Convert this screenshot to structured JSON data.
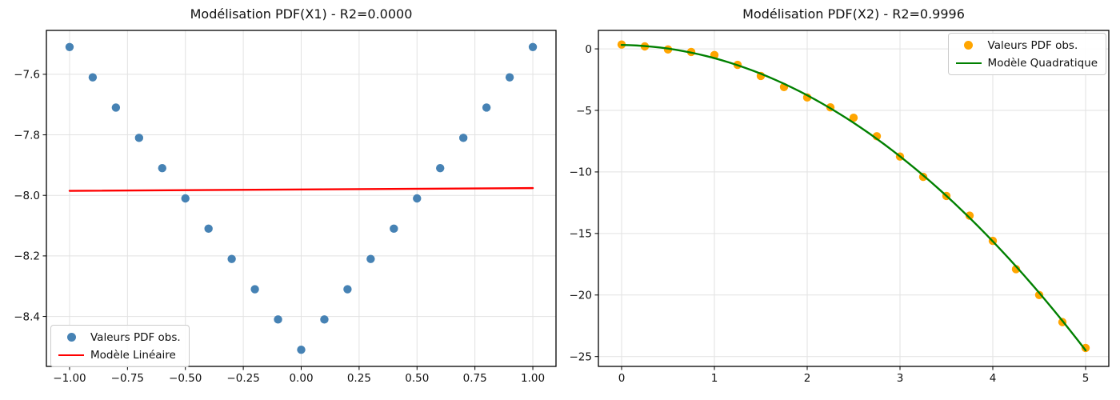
{
  "figure": {
    "background_color": "#ffffff",
    "text_color": "#111111",
    "grid_color": "#e2e2e2",
    "spine_color": "#000000"
  },
  "chart_data": [
    {
      "type": "scatter",
      "title": "Modélisation PDF(X1) - R2=0.0000",
      "r_squared": "0.0000",
      "xlabel": "",
      "ylabel": "",
      "axes": {
        "xlim": [
          -1.1,
          1.1
        ],
        "ylim": [
          -8.565,
          -7.455
        ],
        "grid": true,
        "xtick_values": [
          -1.0,
          -0.75,
          -0.5,
          -0.25,
          0.0,
          0.25,
          0.5,
          0.75,
          1.0
        ],
        "xtick_labels": [
          "−1.00",
          "−0.75",
          "−0.50",
          "−0.25",
          "0.00",
          "0.25",
          "0.50",
          "0.75",
          "1.00"
        ],
        "ytick_values": [
          -7.6,
          -7.8,
          -8.0,
          -8.2,
          -8.4
        ],
        "ytick_labels": [
          "−7.6",
          "−7.8",
          "−8.0",
          "−8.2",
          "−8.4"
        ]
      },
      "legend_position": "lower left",
      "series": [
        {
          "name": "Valeurs PDF obs.",
          "type": "scatter",
          "color": "#4682b4",
          "marker": "circle",
          "x": [
            -1.0,
            -0.9,
            -0.8,
            -0.7,
            -0.6,
            -0.5,
            -0.4,
            -0.3,
            -0.2,
            -0.1,
            0.0,
            0.1,
            0.2,
            0.3,
            0.4,
            0.5,
            0.6,
            0.7,
            0.8,
            0.9,
            1.0
          ],
          "y": [
            -7.51,
            -7.61,
            -7.71,
            -7.81,
            -7.91,
            -8.01,
            -8.11,
            -8.21,
            -8.31,
            -8.41,
            -8.51,
            -8.41,
            -8.31,
            -8.21,
            -8.11,
            -8.01,
            -7.91,
            -7.81,
            -7.71,
            -7.61,
            -7.51
          ]
        },
        {
          "name": "Modèle Linéaire",
          "type": "line",
          "color": "#ff0000",
          "x": [
            -1.0,
            1.0
          ],
          "y": [
            -7.985,
            -7.976
          ]
        }
      ]
    },
    {
      "type": "scatter",
      "title": "Modélisation PDF(X2) - R2=0.9996",
      "r_squared": "0.9996",
      "xlabel": "",
      "ylabel": "",
      "axes": {
        "xlim": [
          -0.25,
          5.25
        ],
        "ylim": [
          -25.8,
          1.5
        ],
        "grid": true,
        "xtick_values": [
          0,
          1,
          2,
          3,
          4,
          5
        ],
        "xtick_labels": [
          "0",
          "1",
          "2",
          "3",
          "4",
          "5"
        ],
        "ytick_values": [
          0,
          -5,
          -10,
          -15,
          -20,
          -25
        ],
        "ytick_labels": [
          "0",
          "−5",
          "−10",
          "−15",
          "−20",
          "−25"
        ]
      },
      "legend_position": "upper right",
      "series": [
        {
          "name": "Valeurs PDF obs.",
          "type": "scatter",
          "color": "#ffa500",
          "marker": "circle",
          "x": [
            0.0,
            0.25,
            0.5,
            0.75,
            1.0,
            1.25,
            1.5,
            1.75,
            2.0,
            2.25,
            2.5,
            2.75,
            3.0,
            3.25,
            3.5,
            3.75,
            4.0,
            4.25,
            4.5,
            4.75,
            5.0
          ],
          "y": [
            0.35,
            0.2,
            -0.05,
            -0.25,
            -0.5,
            -1.3,
            -2.2,
            -3.1,
            -3.95,
            -4.75,
            -5.6,
            -7.1,
            -8.75,
            -10.4,
            -11.95,
            -13.55,
            -15.6,
            -17.9,
            -20.0,
            -22.2,
            -24.3
          ]
        },
        {
          "name": "Modèle Quadratique",
          "type": "line",
          "color": "#008000",
          "model": "quadratic",
          "coefficients": {
            "a": -0.9724,
            "b": -0.0993,
            "c": 0.3161
          },
          "x_range": [
            0.0,
            5.0
          ]
        }
      ]
    }
  ]
}
